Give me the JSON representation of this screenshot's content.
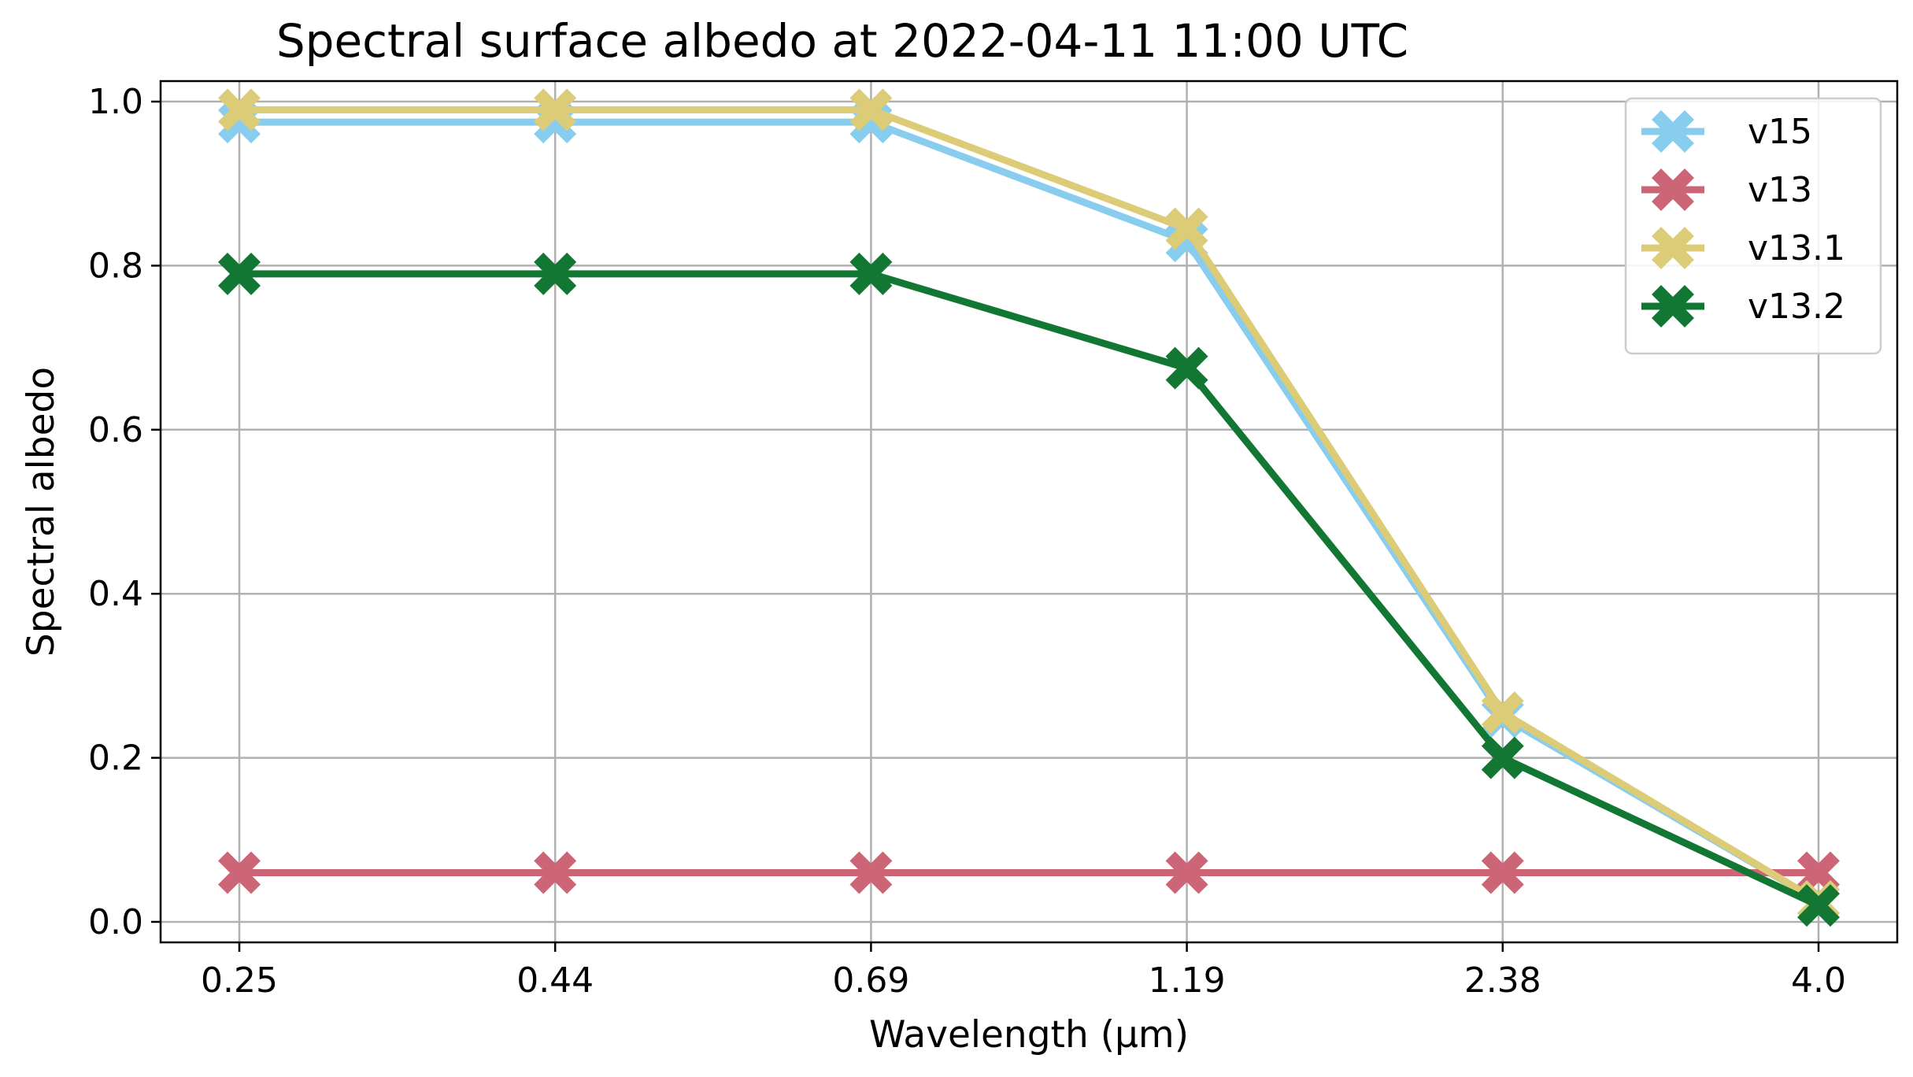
{
  "chart_data": {
    "type": "line",
    "title": "Spectral surface albedo at 2022-04-11 11:00 UTC",
    "xlabel": "Wavelength (μm)",
    "ylabel": "Spectral albedo",
    "categories": [
      "0.25",
      "0.44",
      "0.69",
      "1.19",
      "2.38",
      "4.0"
    ],
    "ylim": [
      -0.025,
      1.025
    ],
    "yticks": [
      "0.0",
      "0.2",
      "0.4",
      "0.6",
      "0.8",
      "1.0"
    ],
    "grid": true,
    "legend_position": "top-right",
    "marker": "X",
    "series": [
      {
        "name": "v15",
        "color": "#88CCEE",
        "values": [
          0.975,
          0.975,
          0.975,
          0.83,
          0.25,
          0.025
        ]
      },
      {
        "name": "v13",
        "color": "#CC6677",
        "values": [
          0.06,
          0.06,
          0.06,
          0.06,
          0.06,
          0.06
        ]
      },
      {
        "name": "v13.1",
        "color": "#DDCC77",
        "values": [
          0.99,
          0.99,
          0.99,
          0.845,
          0.255,
          0.025
        ]
      },
      {
        "name": "v13.2",
        "color": "#117733",
        "values": [
          0.79,
          0.79,
          0.79,
          0.675,
          0.2,
          0.02
        ]
      }
    ]
  }
}
